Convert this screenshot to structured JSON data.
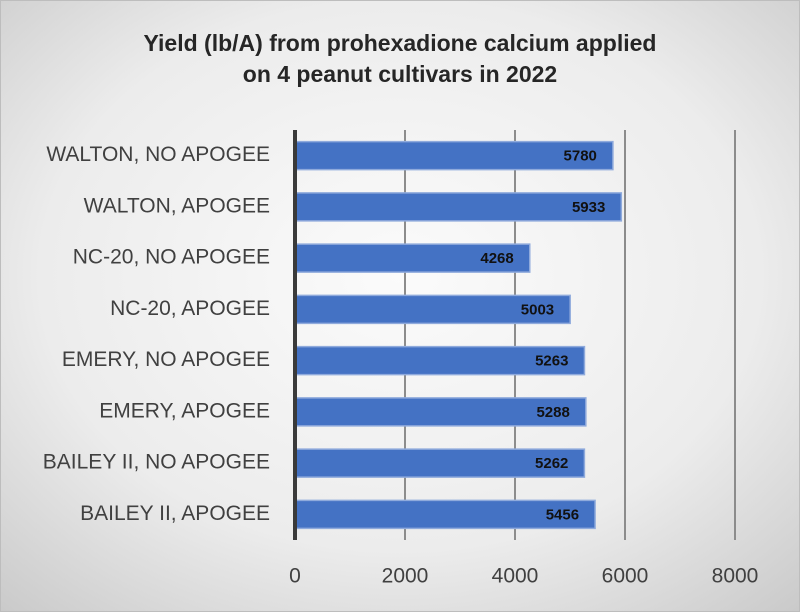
{
  "chart_data": {
    "type": "bar",
    "orientation": "horizontal",
    "title": [
      "Yield (lb/A) from prohexadione calcium applied",
      "on 4 peanut cultivars in 2022"
    ],
    "categories": [
      "WALTON, NO APOGEE",
      "WALTON, APOGEE",
      "NC-20, NO APOGEE",
      "NC-20, APOGEE",
      "EMERY, NO APOGEE",
      "EMERY, APOGEE",
      "BAILEY II, NO APOGEE",
      "BAILEY II, APOGEE"
    ],
    "values": [
      5780,
      5933,
      4268,
      5003,
      5263,
      5288,
      5262,
      5456
    ],
    "color": "#4472c4",
    "xlim": [
      0,
      8000
    ],
    "xticks": [
      0,
      2000,
      4000,
      6000,
      8000
    ],
    "grid": true
  }
}
